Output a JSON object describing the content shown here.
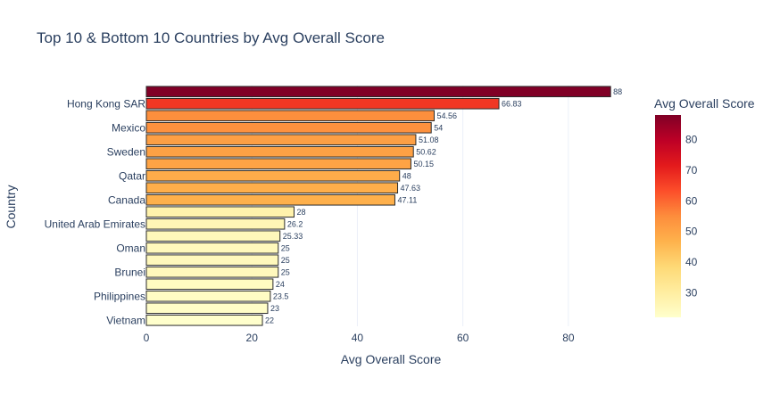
{
  "chart_data": {
    "type": "bar",
    "orientation": "horizontal",
    "title": "Top 10 & Bottom 10 Countries by Avg Overall Score",
    "xlabel": "Avg Overall Score",
    "ylabel": "Country",
    "xlim": [
      0,
      90
    ],
    "x_ticks": [
      "0",
      "20",
      "40",
      "60",
      "80"
    ],
    "grid": true,
    "colorbar": {
      "title": "Avg Overall Score",
      "range": [
        22,
        88
      ],
      "ticks": [
        "30",
        "40",
        "50",
        "60",
        "70",
        "80"
      ],
      "colorscale": "YlOrRd"
    },
    "bars": [
      {
        "category": "",
        "value": 88,
        "label": "88"
      },
      {
        "category": "Hong Kong SAR",
        "value": 66.83,
        "label": "66.83"
      },
      {
        "category": "",
        "value": 54.56,
        "label": "54.56"
      },
      {
        "category": "Mexico",
        "value": 54,
        "label": "54"
      },
      {
        "category": "",
        "value": 51.08,
        "label": "51.08"
      },
      {
        "category": "Sweden",
        "value": 50.62,
        "label": "50.62"
      },
      {
        "category": "",
        "value": 50.15,
        "label": "50.15"
      },
      {
        "category": "Qatar",
        "value": 48,
        "label": "48"
      },
      {
        "category": "",
        "value": 47.63,
        "label": "47.63"
      },
      {
        "category": "Canada",
        "value": 47.11,
        "label": "47.11"
      },
      {
        "category": "",
        "value": 28,
        "label": "28"
      },
      {
        "category": "United Arab Emirates",
        "value": 26.2,
        "label": "26.2"
      },
      {
        "category": "",
        "value": 25.33,
        "label": "25.33"
      },
      {
        "category": "Oman",
        "value": 25,
        "label": "25"
      },
      {
        "category": "",
        "value": 25,
        "label": "25"
      },
      {
        "category": "Brunei",
        "value": 25,
        "label": "25"
      },
      {
        "category": "",
        "value": 24,
        "label": "24"
      },
      {
        "category": "Philippines",
        "value": 23.5,
        "label": "23.5"
      },
      {
        "category": "",
        "value": 23,
        "label": "23"
      },
      {
        "category": "Vietnam",
        "value": 22,
        "label": "22"
      }
    ]
  }
}
